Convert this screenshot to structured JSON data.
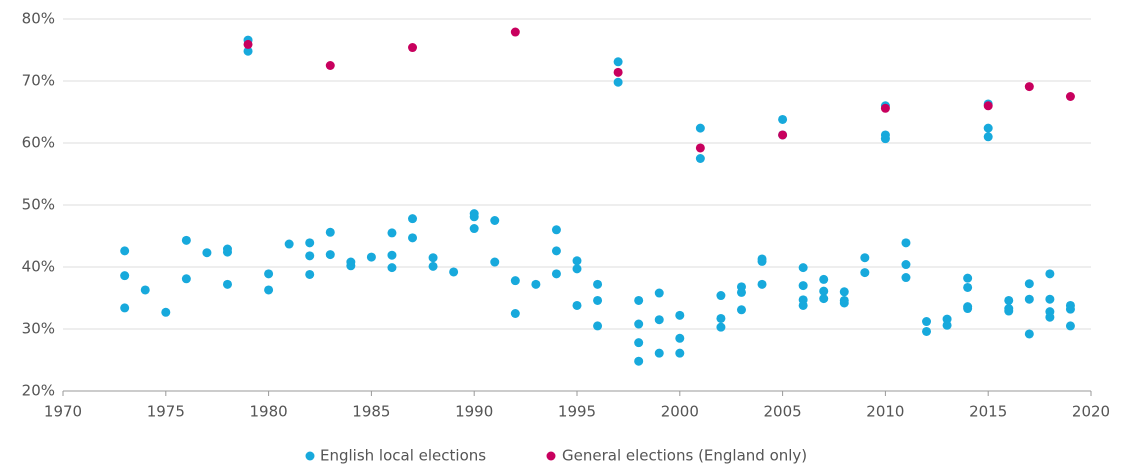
{
  "chart_data": {
    "type": "scatter",
    "xlim": [
      1970,
      2020
    ],
    "xticks": [
      1970,
      1975,
      1980,
      1985,
      1990,
      1995,
      2000,
      2005,
      2010,
      2015,
      2020
    ],
    "ylim": [
      20,
      80
    ],
    "yticks": [
      {
        "value": 20,
        "label": "20%"
      },
      {
        "value": 30,
        "label": "30%"
      },
      {
        "value": 40,
        "label": "40%"
      },
      {
        "value": 50,
        "label": "50%"
      },
      {
        "value": 60,
        "label": "60%"
      },
      {
        "value": 70,
        "label": "70%"
      },
      {
        "value": 80,
        "label": "80%"
      }
    ],
    "grid": true,
    "legend": "bottom",
    "series": [
      {
        "name": "English local elections",
        "color": "#17a9dc",
        "x": [
          1973,
          1973,
          1973,
          1974,
          1975,
          1976,
          1976,
          1977,
          1978,
          1978,
          1978,
          1979,
          1979,
          1980,
          1980,
          1981,
          1982,
          1982,
          1982,
          1983,
          1983,
          1984,
          1984,
          1985,
          1986,
          1986,
          1986,
          1987,
          1987,
          1988,
          1988,
          1989,
          1990,
          1990,
          1990,
          1991,
          1991,
          1992,
          1992,
          1993,
          1994,
          1994,
          1994,
          1995,
          1995,
          1995,
          1996,
          1996,
          1996,
          1997,
          1997,
          1998,
          1998,
          1998,
          1998,
          1999,
          1999,
          1999,
          2000,
          2000,
          2000,
          2001,
          2001,
          2002,
          2002,
          2002,
          2003,
          2003,
          2003,
          2004,
          2004,
          2004,
          2005,
          2005,
          2006,
          2006,
          2006,
          2006,
          2007,
          2007,
          2007,
          2008,
          2008,
          2008,
          2009,
          2009,
          2010,
          2010,
          2010,
          2011,
          2011,
          2011,
          2012,
          2012,
          2013,
          2013,
          2014,
          2014,
          2014,
          2014,
          2015,
          2015,
          2015,
          2016,
          2016,
          2016,
          2017,
          2017,
          2017,
          2018,
          2018,
          2018,
          2018,
          2019,
          2019,
          2019
        ],
        "values": [
          42.6,
          38.6,
          33.4,
          36.3,
          32.7,
          44.3,
          38.1,
          42.3,
          42.9,
          42.4,
          37.2,
          76.6,
          74.8,
          38.9,
          36.3,
          43.7,
          43.9,
          41.8,
          38.8,
          45.6,
          42.0,
          40.8,
          40.2,
          41.6,
          45.5,
          41.9,
          39.9,
          47.8,
          44.7,
          41.5,
          40.1,
          39.2,
          48.6,
          48.1,
          46.2,
          47.5,
          40.8,
          37.8,
          32.5,
          37.2,
          46.0,
          42.6,
          38.9,
          41.0,
          39.7,
          33.8,
          37.2,
          34.6,
          30.5,
          73.1,
          69.8,
          34.6,
          30.8,
          27.8,
          24.8,
          35.8,
          31.5,
          26.1,
          32.2,
          28.5,
          26.1,
          62.4,
          57.5,
          35.4,
          31.7,
          30.3,
          36.8,
          35.9,
          33.1,
          41.3,
          40.9,
          37.2,
          63.8,
          61.3,
          39.9,
          37.0,
          34.7,
          33.8,
          38.0,
          36.1,
          34.9,
          36.0,
          34.6,
          34.2,
          41.5,
          39.1,
          66.0,
          61.3,
          60.7,
          43.9,
          40.4,
          38.3,
          31.2,
          29.6,
          31.6,
          30.6,
          38.2,
          36.7,
          33.6,
          33.3,
          66.3,
          62.4,
          61.0,
          34.6,
          33.3,
          32.9,
          37.3,
          34.8,
          29.2,
          38.9,
          34.8,
          32.8,
          31.9,
          33.8,
          33.2,
          30.5
        ]
      },
      {
        "name": "General elections (England only)",
        "color": "#c8005e",
        "x": [
          1979,
          1983,
          1987,
          1992,
          1997,
          2001,
          2005,
          2010,
          2015,
          2017,
          2019
        ],
        "values": [
          75.9,
          72.5,
          75.4,
          77.9,
          71.4,
          59.2,
          61.3,
          65.6,
          66.0,
          69.1,
          67.5
        ]
      }
    ]
  }
}
